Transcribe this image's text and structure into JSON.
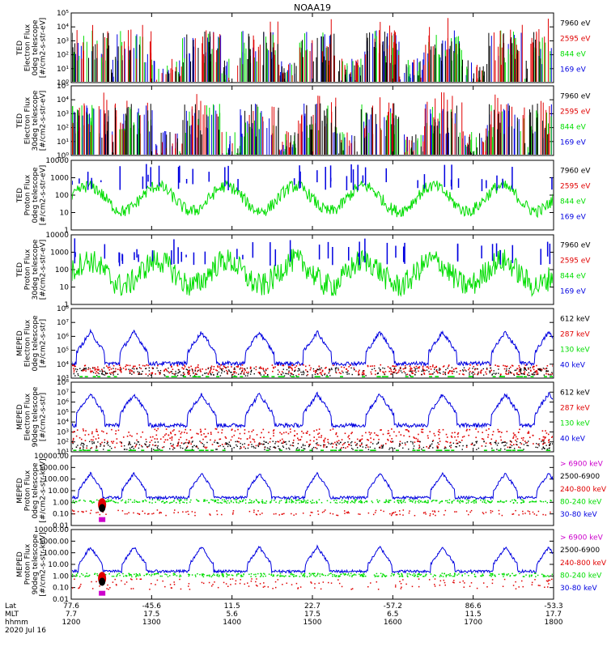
{
  "title": "NOAA19",
  "chart_data": [
    {
      "type": "line",
      "ylabel": [
        "TED",
        "Electron Flux",
        "0deg telescope",
        "[#/cm2-s-str-eV]"
      ],
      "ylog": true,
      "ylim": [
        1,
        100000
      ],
      "yticks": [
        {
          "v": 1,
          "t": "10⁰"
        },
        {
          "v": 10,
          "t": "10¹"
        },
        {
          "v": 100,
          "t": "10²"
        },
        {
          "v": 1000,
          "t": "10³"
        },
        {
          "v": 10000,
          "t": "10⁴"
        },
        {
          "v": 100000,
          "t": "10⁵"
        }
      ],
      "legend": [
        {
          "label": "7960 eV",
          "color": "#000000"
        },
        {
          "label": "2595 eV",
          "color": "#e00000"
        },
        {
          "label": "844 eV",
          "color": "#00dd00"
        },
        {
          "label": "169 eV",
          "color": "#0000e0"
        }
      ],
      "mode": "ted_electron",
      "series": [
        {
          "name": "169 eV",
          "color": "#0000e0",
          "sample": [
            [
              0.02,
              60
            ],
            [
              0.08,
              150
            ],
            [
              0.25,
              300
            ],
            [
              0.4,
              120
            ],
            [
              0.55,
              200
            ],
            [
              0.7,
              80
            ],
            [
              0.86,
              400
            ]
          ]
        },
        {
          "name": "844 eV",
          "color": "#00dd00",
          "sample": [
            [
              0.03,
              40
            ],
            [
              0.22,
              250
            ],
            [
              0.43,
              90
            ],
            [
              0.65,
              300
            ],
            [
              0.8,
              100
            ]
          ]
        },
        {
          "name": "2595 eV",
          "color": "#e00000",
          "sample": [
            [
              0.04,
              200
            ],
            [
              0.28,
              1000
            ],
            [
              0.5,
              900
            ],
            [
              0.72,
              700
            ],
            [
              0.92,
              1000
            ]
          ]
        },
        {
          "name": "7960 eV",
          "color": "#000000",
          "sample": [
            [
              0.05,
              20
            ],
            [
              0.3,
              200
            ],
            [
              0.5,
              100
            ],
            [
              0.7,
              80
            ],
            [
              0.9,
              150
            ]
          ]
        }
      ]
    },
    {
      "type": "line",
      "ylabel": [
        "TED",
        "Electron Flux",
        "30deg telescope",
        "[#/cm2-s-str-eV]"
      ],
      "ylog": true,
      "ylim": [
        1,
        100000
      ],
      "yticks": [
        {
          "v": 1,
          "t": "10⁰"
        },
        {
          "v": 10,
          "t": "10¹"
        },
        {
          "v": 100,
          "t": "10²"
        },
        {
          "v": 1000,
          "t": "10³"
        },
        {
          "v": 10000,
          "t": "10⁴"
        },
        {
          "v": 100000,
          "t": "10⁵"
        }
      ],
      "legend": [
        {
          "label": "7960 eV",
          "color": "#000000"
        },
        {
          "label": "2595 eV",
          "color": "#e00000"
        },
        {
          "label": "844 eV",
          "color": "#00dd00"
        },
        {
          "label": "169 eV",
          "color": "#0000e0"
        }
      ],
      "mode": "ted_electron",
      "series": [
        {
          "name": "169 eV",
          "color": "#0000e0",
          "sample": [
            [
              0.1,
              100
            ],
            [
              0.3,
              500
            ],
            [
              0.6,
              300
            ],
            [
              0.85,
              200
            ]
          ]
        },
        {
          "name": "844 eV",
          "color": "#00dd00",
          "sample": [
            [
              0.08,
              60
            ],
            [
              0.45,
              200
            ],
            [
              0.78,
              150
            ]
          ]
        },
        {
          "name": "2595 eV",
          "color": "#e00000",
          "sample": [
            [
              0.12,
              200
            ],
            [
              0.35,
              600
            ],
            [
              0.55,
              400
            ],
            [
              0.9,
              500
            ]
          ]
        },
        {
          "name": "7960 eV",
          "color": "#000000",
          "sample": [
            [
              0.05,
              20
            ],
            [
              0.4,
              100
            ],
            [
              0.95,
              60
            ]
          ]
        }
      ]
    },
    {
      "type": "line",
      "ylabel": [
        "TED",
        "Proton Flux",
        "0deg telescope",
        "[#/cm2-s-str-eV]"
      ],
      "ylog": true,
      "ylim": [
        1,
        10000
      ],
      "yticks": [
        {
          "v": 1,
          "t": "1"
        },
        {
          "v": 10,
          "t": "10"
        },
        {
          "v": 100,
          "t": "100"
        },
        {
          "v": 1000,
          "t": "1000"
        },
        {
          "v": 10000,
          "t": "10000"
        }
      ],
      "legend": [
        {
          "label": "7960 eV",
          "color": "#000000"
        },
        {
          "label": "2595 eV",
          "color": "#e00000"
        },
        {
          "label": "844 eV",
          "color": "#00dd00"
        },
        {
          "label": "169 eV",
          "color": "#0000e0"
        }
      ],
      "mode": "ted_proton0",
      "series": [
        {
          "name": "844 eV",
          "color": "#00dd00",
          "sample": [
            [
              0.1,
              60
            ],
            [
              0.2,
              300
            ],
            [
              0.35,
              200
            ],
            [
              0.5,
              400
            ],
            [
              0.65,
              300
            ],
            [
              0.8,
              400
            ],
            [
              0.95,
              200
            ]
          ]
        },
        {
          "name": "169 eV",
          "color": "#0000e0",
          "sample": [
            [
              0.05,
              300
            ],
            [
              0.33,
              1000
            ],
            [
              0.6,
              800
            ],
            [
              0.9,
              600
            ]
          ]
        }
      ]
    },
    {
      "type": "line",
      "ylabel": [
        "TED",
        "Proton Flux",
        "30deg telescope",
        "[#/cm2-s-str-eV]"
      ],
      "ylog": true,
      "ylim": [
        1,
        10000
      ],
      "yticks": [
        {
          "v": 1,
          "t": "1"
        },
        {
          "v": 10,
          "t": "10"
        },
        {
          "v": 100,
          "t": "100"
        },
        {
          "v": 1000,
          "t": "1000"
        },
        {
          "v": 10000,
          "t": "10000"
        }
      ],
      "legend": [
        {
          "label": "7960 eV",
          "color": "#000000"
        },
        {
          "label": "2595 eV",
          "color": "#e00000"
        },
        {
          "label": "844 eV",
          "color": "#00dd00"
        },
        {
          "label": "169 eV",
          "color": "#0000e0"
        }
      ],
      "mode": "ted_proton30",
      "series": [
        {
          "name": "844 eV",
          "color": "#00dd00",
          "sample": [
            [
              0.1,
              40
            ],
            [
              0.3,
              100
            ],
            [
              0.55,
              120
            ],
            [
              0.75,
              200
            ],
            [
              0.9,
              100
            ]
          ]
        },
        {
          "name": "169 eV",
          "color": "#0000e0",
          "sample": [
            [
              0.12,
              300
            ],
            [
              0.4,
              600
            ],
            [
              0.68,
              800
            ],
            [
              0.88,
              400
            ]
          ]
        }
      ]
    },
    {
      "type": "line",
      "ylabel": [
        "MEPED",
        "Electron Flux",
        "0deg telescope",
        "[#/cm2-s-str]"
      ],
      "ylog": true,
      "ylim": [
        1000,
        100000000
      ],
      "yticks": [
        {
          "v": 1000,
          "t": "10³"
        },
        {
          "v": 10000,
          "t": "10⁴"
        },
        {
          "v": 100000,
          "t": "10⁵"
        },
        {
          "v": 1000000,
          "t": "10⁶"
        },
        {
          "v": 10000000,
          "t": "10⁷"
        },
        {
          "v": 100000000,
          "t": "10⁸"
        }
      ],
      "legend": [
        {
          "label": "612 keV",
          "color": "#000000"
        },
        {
          "label": "287 keV",
          "color": "#e00000"
        },
        {
          "label": "130 keV",
          "color": "#00dd00"
        },
        {
          "label": "40 keV",
          "color": "#0000e0"
        }
      ],
      "mode": "meped_e0",
      "series": [
        {
          "name": "40 keV",
          "color": "#0000e0",
          "sample": [
            [
              0.1,
              100000
            ],
            [
              0.25,
              500000
            ],
            [
              0.5,
              400000
            ],
            [
              0.8,
              300000
            ]
          ]
        },
        {
          "name": "130 keV",
          "color": "#00dd00",
          "sample": [
            [
              0.2,
              2000
            ],
            [
              0.6,
              2000
            ]
          ]
        },
        {
          "name": "287 keV",
          "color": "#e00000",
          "sample": [
            [
              0.3,
              5000
            ],
            [
              0.7,
              6000
            ]
          ]
        },
        {
          "name": "612 keV",
          "color": "#000000",
          "sample": [
            [
              0.4,
              4000
            ],
            [
              0.9,
              4000
            ]
          ]
        }
      ]
    },
    {
      "type": "line",
      "ylabel": [
        "MEPED",
        "Electron Flux",
        "90deg telescope",
        "[#/cm2-s-str]"
      ],
      "ylog": true,
      "ylim": [
        10,
        100000000
      ],
      "yticks": [
        {
          "v": 10,
          "t": "10¹"
        },
        {
          "v": 100,
          "t": "10²"
        },
        {
          "v": 1000,
          "t": "10³"
        },
        {
          "v": 10000,
          "t": "10⁴"
        },
        {
          "v": 100000,
          "t": "10⁵"
        },
        {
          "v": 1000000,
          "t": "10⁶"
        },
        {
          "v": 10000000,
          "t": "10⁷"
        },
        {
          "v": 100000000,
          "t": "10⁸"
        }
      ],
      "legend": [
        {
          "label": "612 keV",
          "color": "#000000"
        },
        {
          "label": "287 keV",
          "color": "#e00000"
        },
        {
          "label": "130 keV",
          "color": "#00dd00"
        },
        {
          "label": "40 keV",
          "color": "#0000e0"
        }
      ],
      "mode": "meped_e90",
      "series": [
        {
          "name": "40 keV",
          "color": "#0000e0",
          "sample": [
            [
              0.1,
              100000
            ],
            [
              0.45,
              300000
            ],
            [
              0.75,
              200000
            ]
          ]
        },
        {
          "name": "130 keV",
          "color": "#00dd00",
          "sample": [
            [
              0.15,
              10000
            ],
            [
              0.5,
              20000
            ]
          ]
        },
        {
          "name": "287 keV",
          "color": "#e00000",
          "sample": [
            [
              0.2,
              5000
            ],
            [
              0.6,
              6000
            ]
          ]
        },
        {
          "name": "612 keV",
          "color": "#000000",
          "sample": [
            [
              0.25,
              800
            ],
            [
              0.9,
              900
            ]
          ]
        }
      ]
    },
    {
      "type": "line",
      "ylabel": [
        "MEPED",
        "Proton Flux",
        "0deg telescope",
        "[#/cm2-s-str-keV]"
      ],
      "ylog": true,
      "ylim": [
        0.01,
        10000
      ],
      "yticks": [
        {
          "v": 0.01,
          "t": "0.01"
        },
        {
          "v": 0.1,
          "t": "0.10"
        },
        {
          "v": 1,
          "t": "1.00"
        },
        {
          "v": 10,
          "t": "10.00"
        },
        {
          "v": 100,
          "t": "100.00"
        },
        {
          "v": 1000,
          "t": "1000.00"
        },
        {
          "v": 10000,
          "t": "10000.00"
        }
      ],
      "legend": [
        {
          "label": "> 6900 keV",
          "color": "#cc00cc"
        },
        {
          "label": "2500-6900",
          "color": "#000000"
        },
        {
          "label": "240-800 keV",
          "color": "#e00000"
        },
        {
          "label": "80-240 keV",
          "color": "#00dd00"
        },
        {
          "label": "30-80 keV",
          "color": "#0000e0"
        }
      ],
      "mode": "meped_p0",
      "series": [
        {
          "name": "30-80 keV",
          "color": "#0000e0",
          "sample": [
            [
              0.1,
              3
            ],
            [
              0.3,
              100
            ],
            [
              0.55,
              200
            ],
            [
              0.85,
              100
            ]
          ]
        },
        {
          "name": "80-240 keV",
          "color": "#00dd00",
          "sample": [
            [
              0.2,
              1
            ],
            [
              0.5,
              2
            ]
          ]
        },
        {
          "name": "240-800 keV",
          "color": "#e00000",
          "sample": [
            [
              0.15,
              0.3
            ],
            [
              0.6,
              0.3
            ]
          ]
        }
      ]
    },
    {
      "type": "line",
      "ylabel": [
        "MEPED",
        "Proton Flux",
        "90deg telescope",
        "[#/cm2-s-str-keV]"
      ],
      "ylog": true,
      "ylim": [
        0.01,
        10000
      ],
      "yticks": [
        {
          "v": 0.01,
          "t": "0.01"
        },
        {
          "v": 0.1,
          "t": "0.10"
        },
        {
          "v": 1,
          "t": "1.00"
        },
        {
          "v": 10,
          "t": "10.00"
        },
        {
          "v": 100,
          "t": "100.00"
        },
        {
          "v": 1000,
          "t": "1000.00"
        },
        {
          "v": 10000,
          "t": "10000.00"
        }
      ],
      "legend": [
        {
          "label": "> 6900 keV",
          "color": "#cc00cc"
        },
        {
          "label": "2500-6900",
          "color": "#000000"
        },
        {
          "label": "240-800 keV",
          "color": "#e00000"
        },
        {
          "label": "80-240 keV",
          "color": "#00dd00"
        },
        {
          "label": "30-80 keV",
          "color": "#0000e0"
        }
      ],
      "mode": "meped_p90",
      "series": [
        {
          "name": "30-80 keV",
          "color": "#0000e0",
          "sample": [
            [
              0.1,
              5
            ],
            [
              0.35,
              200
            ],
            [
              0.6,
              300
            ],
            [
              0.9,
              150
            ]
          ]
        },
        {
          "name": "80-240 keV",
          "color": "#00dd00",
          "sample": [
            [
              0.2,
              2
            ],
            [
              0.5,
              3
            ]
          ]
        },
        {
          "name": "240-800 keV",
          "color": "#e00000",
          "sample": [
            [
              0.15,
              0.3
            ],
            [
              0.7,
              0.4
            ]
          ]
        }
      ]
    }
  ],
  "xaxis": {
    "row_labels": [
      "Lat",
      "MLT",
      "hhmm",
      "2020 Jul 16"
    ],
    "ticks": [
      {
        "lat": "77.6",
        "mlt": "7.7",
        "hhmm": "1200"
      },
      {
        "lat": "-45.6",
        "mlt": "17.5",
        "hhmm": "1300"
      },
      {
        "lat": "11.5",
        "mlt": "5.6",
        "hhmm": "1400"
      },
      {
        "lat": "22.7",
        "mlt": "17.5",
        "hhmm": "1500"
      },
      {
        "lat": "-57.2",
        "mlt": "6.5",
        "hhmm": "1600"
      },
      {
        "lat": "86.6",
        "mlt": "11.5",
        "hhmm": "1700"
      },
      {
        "lat": "-53.3",
        "mlt": "17.7",
        "hhmm": "1800"
      }
    ]
  }
}
